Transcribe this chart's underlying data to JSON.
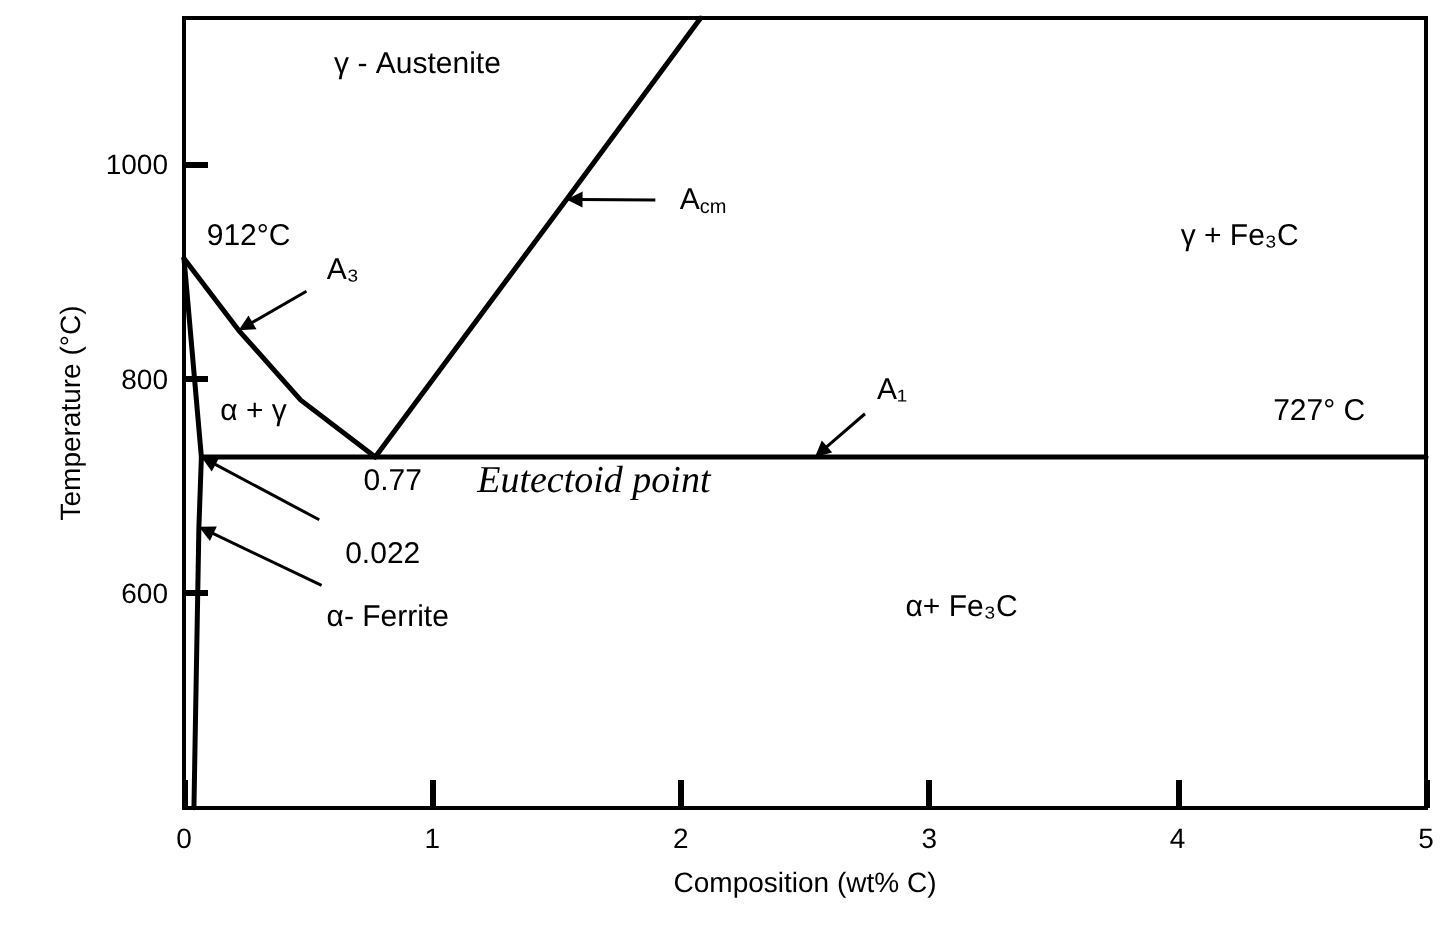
{
  "chart_data": {
    "type": "line",
    "xlabel": "Composition (wt% C)",
    "ylabel": "Temperature (°C)",
    "xlim": [
      0,
      5
    ],
    "ylim": [
      400,
      1136
    ],
    "xticks": [
      0,
      1,
      2,
      3,
      4,
      5
    ],
    "yticks": [
      600,
      800,
      1000
    ],
    "grid": false,
    "marker": "none",
    "line_style": "solid",
    "series": [
      {
        "color": "#000000",
        "x": [
          0,
          0.22,
          0.47,
          0.77
        ],
        "values": [
          912,
          845,
          780,
          727
        ]
      },
      {
        "color": "#000000",
        "x": [
          0.77,
          1.54,
          2.08
        ],
        "values": [
          727,
          967,
          1136
        ]
      },
      {
        "color": "#000000",
        "x": [
          0.07,
          2.54,
          5
        ],
        "values": [
          727,
          727,
          727
        ]
      },
      {
        "color": "#000000",
        "x": [
          0,
          0.07,
          0.06,
          0.04
        ],
        "values": [
          912,
          727,
          662,
          400
        ]
      }
    ],
    "annotations": [
      "γ - Austenite",
      "912°C",
      "A₃",
      "A$_{cm}$",
      "α + γ",
      "0.77",
      "Eutectoid point",
      {
        "text": "0.022",
        "x": 0.07,
        "y": 727
      },
      "α- Ferrite",
      "A₁",
      "727° C",
      "γ + Fe₃C",
      "α+ Fe₃C"
    ]
  }
}
